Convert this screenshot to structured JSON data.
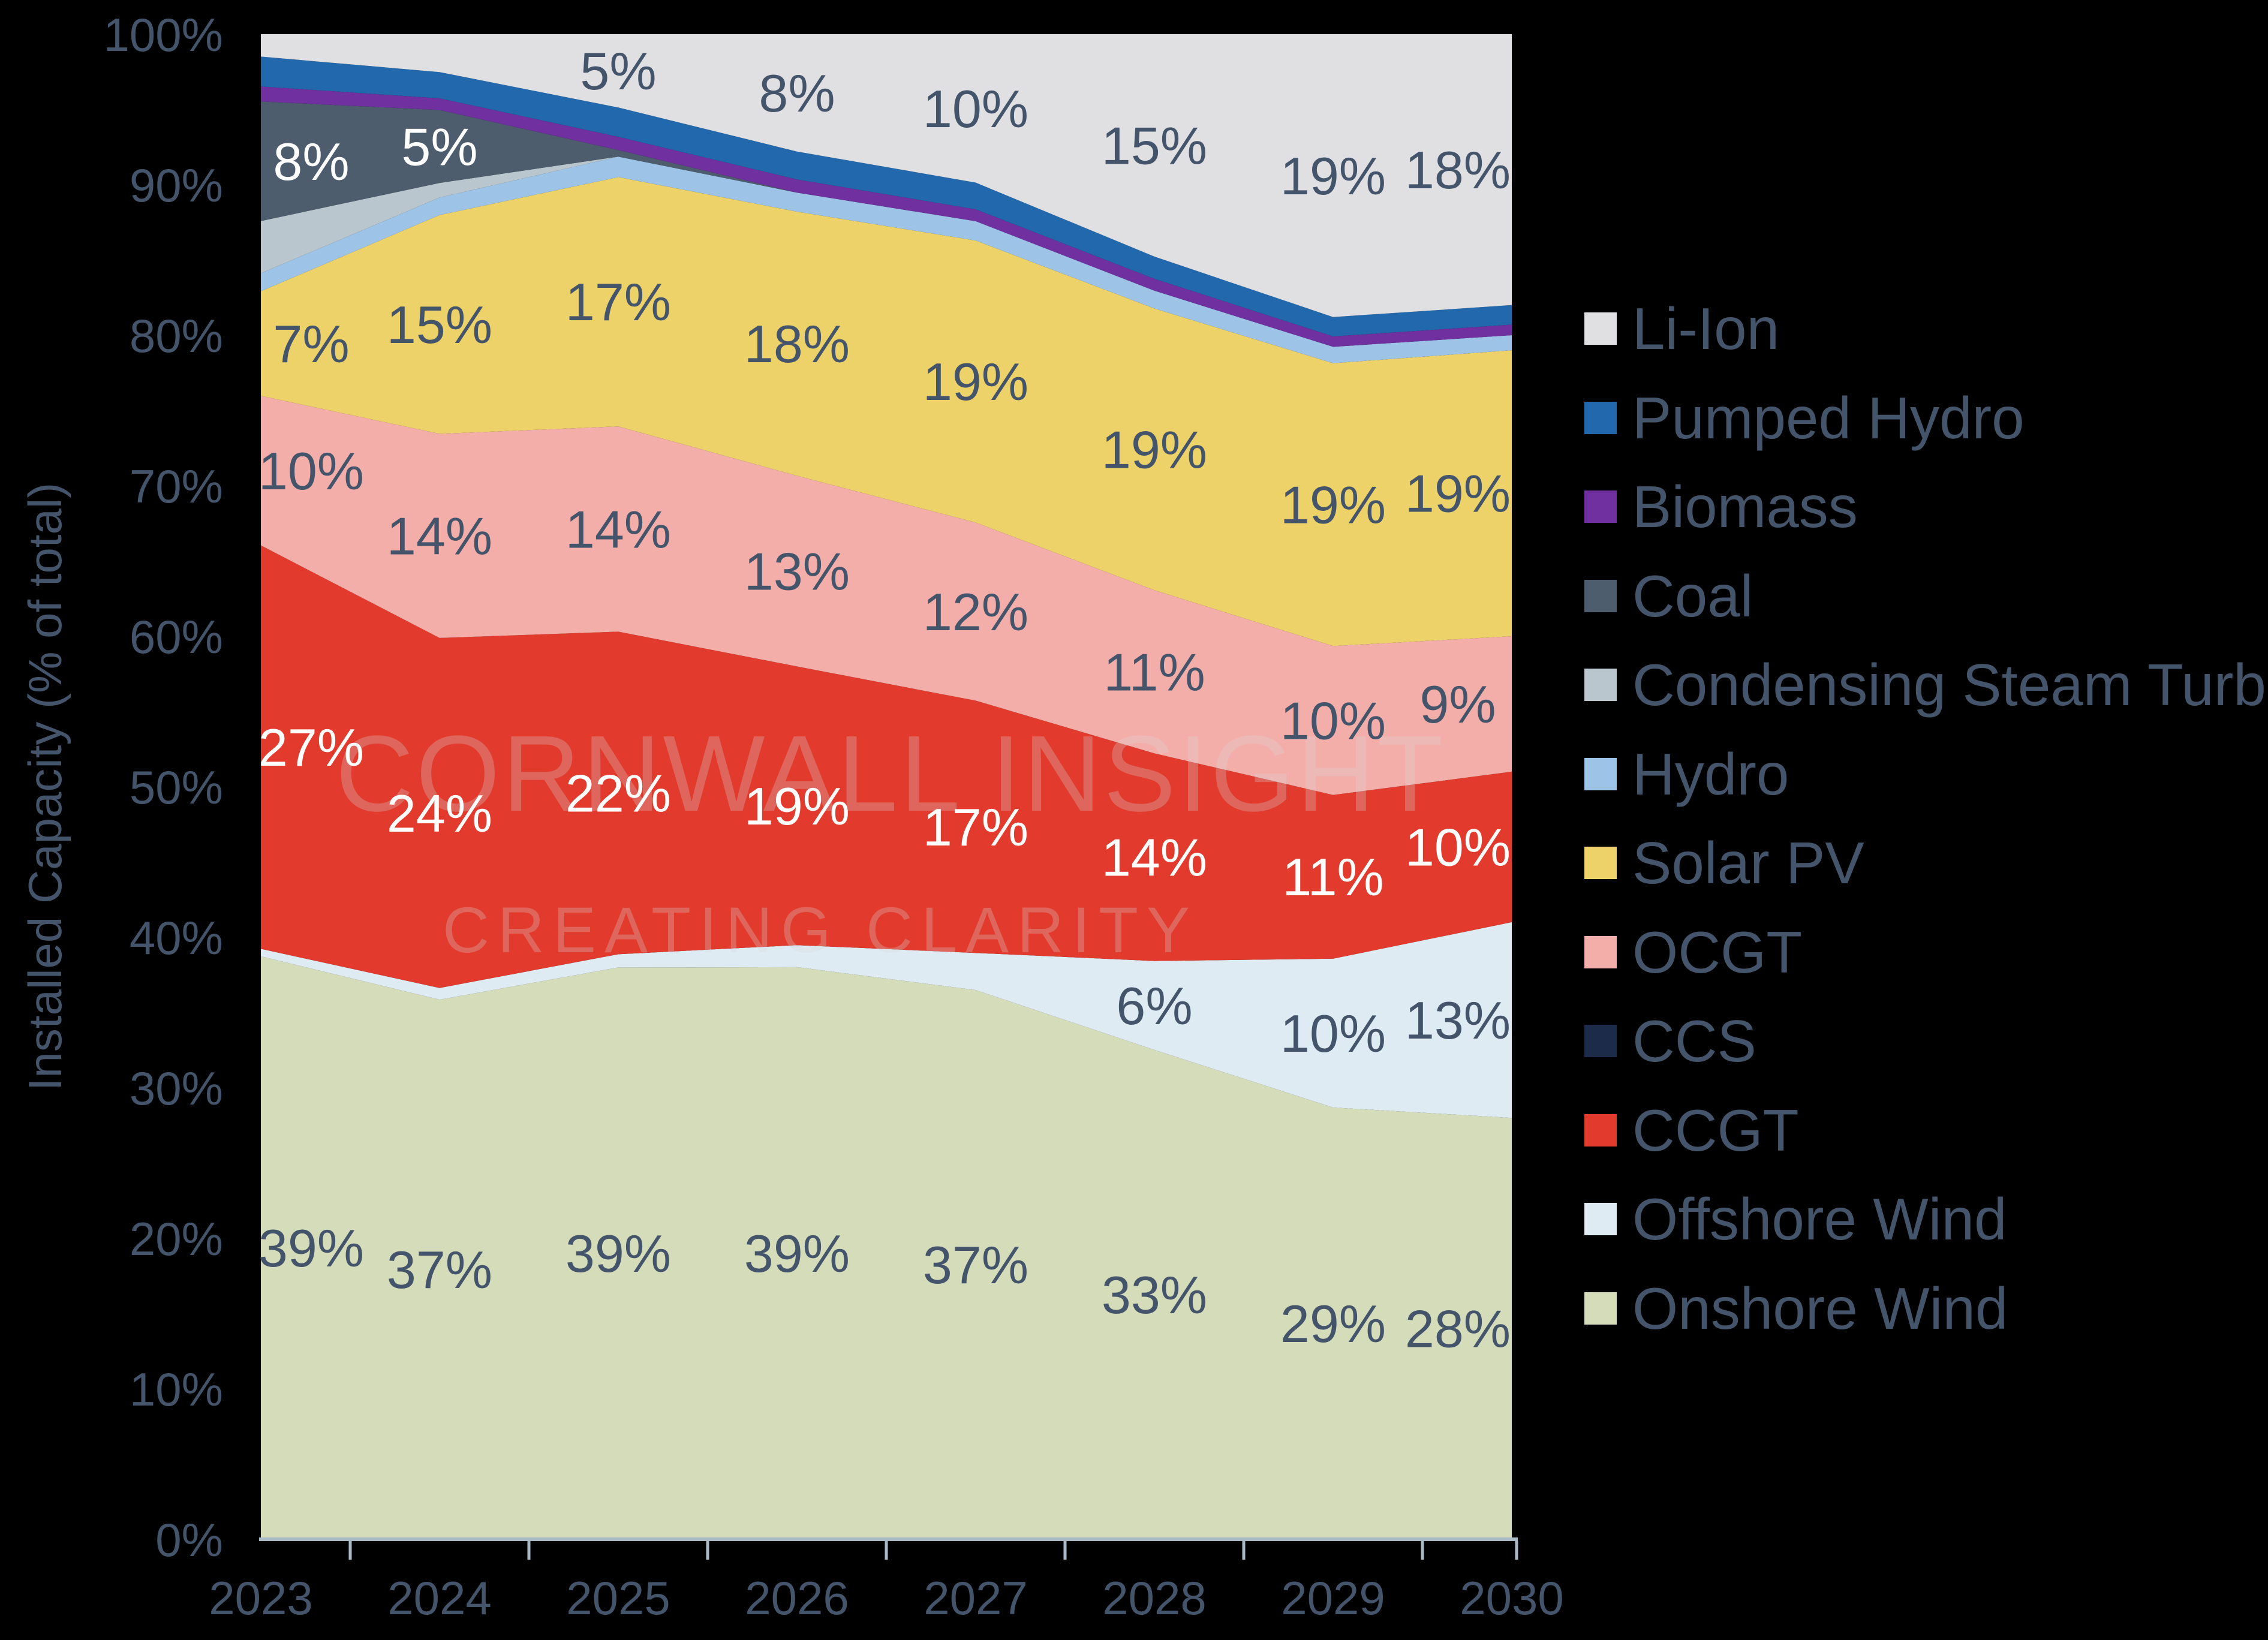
{
  "chart_data": {
    "type": "area",
    "stacking": "percent",
    "title": "",
    "ylabel": "Installed Capacity (% of total)",
    "ylim": [
      0,
      100
    ],
    "grid": false,
    "legend_position": "right",
    "y_ticks": [
      "0%",
      "10%",
      "20%",
      "30%",
      "40%",
      "50%",
      "60%",
      "70%",
      "80%",
      "90%",
      "100%"
    ],
    "categories": [
      "2023",
      "2024",
      "2025",
      "2026",
      "2027",
      "2028",
      "2029",
      "2030"
    ],
    "watermark_line1": "CORNWALL INSIGHT",
    "watermark_line2": "CREATING CLARITY",
    "series": [
      {
        "name": "Onshore Wind",
        "color": "#D4DCBA",
        "label_color": "#44546A",
        "values": [
          39,
          37,
          39,
          39,
          37,
          33,
          29,
          28
        ],
        "labels": [
          "39%",
          "37%",
          "39%",
          "39%",
          "37%",
          "33%",
          "29%",
          "28%"
        ]
      },
      {
        "name": "Offshore Wind",
        "color": "#DEEBF3",
        "label_color": "#44546A",
        "values": [
          0.5,
          0.8,
          0.9,
          1.5,
          2.5,
          6,
          10,
          13
        ],
        "labels": [
          null,
          null,
          null,
          null,
          null,
          "6%",
          "10%",
          "13%"
        ]
      },
      {
        "name": "CCGT",
        "color": "#E23B2D",
        "label_color": "#FFFFFF",
        "values": [
          27,
          24,
          22,
          19,
          17,
          14,
          11,
          10
        ],
        "labels": [
          "27%",
          "24%",
          "22%",
          "19%",
          "17%",
          "14%",
          "11%",
          "10%"
        ]
      },
      {
        "name": "CCS",
        "color": "#1C2B4A",
        "label_color": "#FFFFFF",
        "values": [
          0,
          0,
          0,
          0,
          0,
          0,
          0,
          0
        ],
        "labels": [
          null,
          null,
          null,
          null,
          null,
          null,
          null,
          null
        ]
      },
      {
        "name": "OCGT",
        "color": "#F4AEA9",
        "label_color": "#44546A",
        "values": [
          10,
          14,
          14,
          13,
          12,
          11,
          10,
          9
        ],
        "labels": [
          "10%",
          "14%",
          "14%",
          "13%",
          "12%",
          "11%",
          "10%",
          "9%"
        ]
      },
      {
        "name": "Solar PV",
        "color": "#ECD268",
        "label_color": "#44546A",
        "values": [
          7,
          15,
          17,
          18,
          19,
          19,
          19,
          19
        ],
        "labels": [
          "7%",
          "15%",
          "17%",
          "18%",
          "19%",
          "19%",
          "19%",
          "19%"
        ]
      },
      {
        "name": "Hydro",
        "color": "#9DC3E6",
        "label_color": "#44546A",
        "values": [
          1.2,
          1.2,
          1.4,
          1.3,
          1.3,
          1.2,
          1.1,
          1.0
        ],
        "labels": [
          null,
          null,
          null,
          null,
          null,
          null,
          null,
          null
        ]
      },
      {
        "name": "Condensing Steam Turbine",
        "color": "#B9C6CE",
        "label_color": "#44546A",
        "values": [
          3.5,
          1.0,
          0,
          0,
          0,
          0,
          0,
          0
        ],
        "labels": [
          null,
          null,
          null,
          null,
          null,
          null,
          null,
          null
        ]
      },
      {
        "name": "Coal",
        "color": "#4D5D6E",
        "label_color": "#FFFFFF",
        "values": [
          8,
          5,
          0.45,
          0,
          0,
          0,
          0,
          0
        ],
        "labels": [
          "8%",
          "5%",
          null,
          null,
          null,
          null,
          null,
          null
        ]
      },
      {
        "name": "Biomass",
        "color": "#7030A0",
        "label_color": "#FFFFFF",
        "values": [
          1.0,
          0.8,
          0.9,
          0.9,
          0.8,
          0.8,
          0.7,
          0.7
        ],
        "labels": [
          null,
          null,
          null,
          null,
          null,
          null,
          null,
          null
        ]
      },
      {
        "name": "Pumped Hydro",
        "color": "#2169AC",
        "label_color": "#FFFFFF",
        "values": [
          2.0,
          1.8,
          2.0,
          1.9,
          1.8,
          1.5,
          1.3,
          1.3
        ],
        "labels": [
          null,
          null,
          null,
          null,
          null,
          null,
          null,
          null
        ]
      },
      {
        "name": "Li-Ion",
        "color": "#E0E0E2",
        "label_color": "#44546A",
        "values": [
          1.5,
          2.6,
          5,
          8,
          10,
          15,
          19,
          18
        ],
        "labels": [
          null,
          null,
          "5%",
          "8%",
          "10%",
          "15%",
          "19%",
          "18%"
        ]
      }
    ],
    "legend_order": [
      "Li-Ion",
      "Pumped Hydro",
      "Biomass",
      "Coal",
      "Condensing Steam Turbine",
      "Hydro",
      "Solar PV",
      "OCGT",
      "CCS",
      "CCGT",
      "Offshore Wind",
      "Onshore Wind"
    ]
  },
  "colors": {
    "background": "#000000",
    "text": "#44546A",
    "axis_line": "#A9BAC6",
    "watermark": "rgba(214,214,214,0.28)"
  }
}
